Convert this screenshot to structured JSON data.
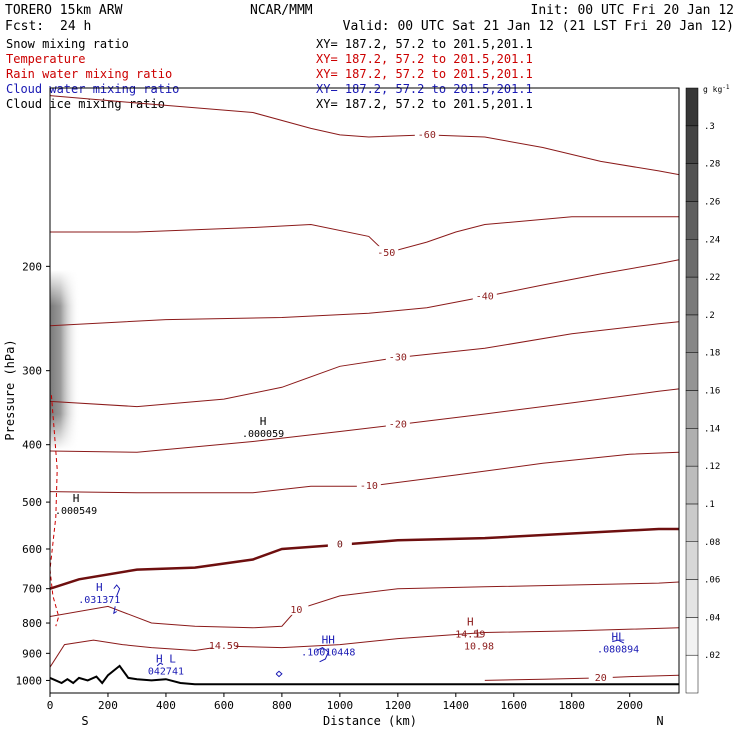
{
  "header": {
    "left_title": "TORERO  15km ARW",
    "center_title": "NCAR/MMM",
    "init": "Init: 00 UTC Fri 20 Jan 12",
    "fcst_label": "Fcst:",
    "fcst_value": "24 h",
    "valid": "Valid: 00 UTC Sat 21 Jan 12 (21 LST Fri 20 Jan 12)"
  },
  "fields": [
    {
      "name": "Snow mixing ratio",
      "xy": "XY= 187.2, 57.2 to 201.5,201.1",
      "color": "#000000"
    },
    {
      "name": "Temperature",
      "xy": "XY= 187.2, 57.2 to 201.5,201.1",
      "color": "#cc0000"
    },
    {
      "name": "Rain water mixing ratio",
      "xy": "XY= 187.2, 57.2 to 201.5,201.1",
      "color": "#cc0000"
    },
    {
      "name": "Cloud water mixing ratio",
      "xy": "XY= 187.2, 57.2 to 201.5,201.1",
      "color": "#1a1ab4"
    },
    {
      "name": "Cloud ice mixing ratio",
      "xy": "XY= 187.2, 57.2 to 201.5,201.1",
      "color": "#000000"
    }
  ],
  "colors": {
    "temperature": "#8b1a1a",
    "temperature_zero": "#6e0f0f",
    "cloud_water": "#1a1ab4",
    "terrain": "#000000",
    "rain": "#cc0000"
  },
  "chart_data": {
    "type": "contour",
    "xlabel": "Distance (km)",
    "ylabel": "Pressure (hPa)",
    "xlim": [
      0,
      2170
    ],
    "ylim": [
      1050,
      100
    ],
    "y_scale": "log",
    "x_ticks": [
      0,
      200,
      400,
      600,
      800,
      1000,
      1200,
      1400,
      1600,
      1800,
      2000
    ],
    "y_ticks": [
      200,
      300,
      400,
      500,
      600,
      700,
      800,
      900,
      1000
    ],
    "x_end_labels": {
      "left": "S",
      "right": "N"
    },
    "colorbar": {
      "unit": "g kg",
      "unit_exp": "-1",
      "ticks": [
        ".02",
        ".04",
        ".06",
        ".08",
        ".1",
        ".12",
        ".14",
        ".16",
        ".18",
        ".2",
        ".22",
        ".24",
        ".26",
        ".28",
        ".3"
      ]
    },
    "temperature_contours": [
      {
        "label": "-60",
        "points": [
          [
            0,
            103
          ],
          [
            300,
            106
          ],
          [
            700,
            110
          ],
          [
            900,
            117
          ],
          [
            1000,
            120
          ],
          [
            1100,
            121
          ],
          [
            1300,
            120
          ],
          [
            1500,
            121
          ],
          [
            1700,
            126
          ],
          [
            1900,
            133
          ],
          [
            2100,
            138
          ],
          [
            2170,
            140
          ]
        ]
      },
      {
        "label": "-50",
        "points": [
          [
            0,
            175
          ],
          [
            300,
            175
          ],
          [
            700,
            172
          ],
          [
            900,
            170
          ],
          [
            1100,
            178
          ],
          [
            1160,
            190
          ],
          [
            1300,
            182
          ],
          [
            1400,
            175
          ],
          [
            1500,
            170
          ],
          [
            1800,
            165
          ],
          [
            2170,
            165
          ]
        ]
      },
      {
        "label": "-40",
        "points": [
          [
            0,
            252
          ],
          [
            400,
            246
          ],
          [
            800,
            244
          ],
          [
            1100,
            240
          ],
          [
            1300,
            235
          ],
          [
            1500,
            225
          ],
          [
            1700,
            215
          ],
          [
            1900,
            206
          ],
          [
            2100,
            198
          ],
          [
            2170,
            195
          ]
        ]
      },
      {
        "label": "-30",
        "points": [
          [
            0,
            338
          ],
          [
            300,
            345
          ],
          [
            600,
            335
          ],
          [
            800,
            320
          ],
          [
            1000,
            295
          ],
          [
            1200,
            285
          ],
          [
            1500,
            275
          ],
          [
            1800,
            260
          ],
          [
            2100,
            250
          ],
          [
            2170,
            248
          ]
        ]
      },
      {
        "label": "-20",
        "points": [
          [
            0,
            410
          ],
          [
            300,
            412
          ],
          [
            700,
            395
          ],
          [
            1000,
            380
          ],
          [
            1200,
            370
          ],
          [
            1500,
            355
          ],
          [
            1800,
            340
          ],
          [
            2100,
            325
          ],
          [
            2170,
            322
          ]
        ]
      },
      {
        "label": "-10",
        "points": [
          [
            0,
            480
          ],
          [
            300,
            482
          ],
          [
            700,
            482
          ],
          [
            900,
            470
          ],
          [
            1100,
            470
          ],
          [
            1400,
            450
          ],
          [
            1700,
            430
          ],
          [
            2000,
            415
          ],
          [
            2170,
            412
          ]
        ]
      },
      {
        "label": "0",
        "bold": true,
        "points": [
          [
            0,
            700
          ],
          [
            100,
            675
          ],
          [
            300,
            650
          ],
          [
            500,
            645
          ],
          [
            700,
            625
          ],
          [
            800,
            600
          ],
          [
            1000,
            590
          ],
          [
            1200,
            580
          ],
          [
            1500,
            575
          ],
          [
            1800,
            565
          ],
          [
            2100,
            555
          ],
          [
            2170,
            555
          ]
        ]
      },
      {
        "label": "10",
        "points": [
          [
            0,
            780
          ],
          [
            200,
            750
          ],
          [
            350,
            800
          ],
          [
            500,
            810
          ],
          [
            700,
            815
          ],
          [
            800,
            810
          ],
          [
            850,
            760
          ],
          [
            1000,
            720
          ],
          [
            1200,
            700
          ],
          [
            1500,
            695
          ],
          [
            1800,
            690
          ],
          [
            2100,
            685
          ],
          [
            2170,
            682
          ]
        ]
      },
      {
        "label": "14.59",
        "points": [
          [
            0,
            950
          ],
          [
            50,
            870
          ],
          [
            150,
            855
          ],
          [
            250,
            870
          ],
          [
            350,
            880
          ],
          [
            500,
            890
          ],
          [
            600,
            875
          ],
          [
            800,
            880
          ],
          [
            1000,
            870
          ],
          [
            1200,
            850
          ],
          [
            1500,
            830
          ],
          [
            1800,
            825
          ],
          [
            2170,
            815
          ]
        ]
      },
      {
        "label": "20",
        "points": [
          [
            1500,
            1000
          ],
          [
            1700,
            995
          ],
          [
            1900,
            990
          ],
          [
            2000,
            985
          ],
          [
            2170,
            980
          ]
        ]
      }
    ],
    "zero_isotherm_label": "0",
    "terrain_profile": [
      [
        0,
        990
      ],
      [
        20,
        1000
      ],
      [
        40,
        1010
      ],
      [
        60,
        995
      ],
      [
        80,
        1010
      ],
      [
        100,
        990
      ],
      [
        130,
        1000
      ],
      [
        160,
        985
      ],
      [
        180,
        1010
      ],
      [
        200,
        980
      ],
      [
        240,
        945
      ],
      [
        270,
        990
      ],
      [
        300,
        995
      ],
      [
        350,
        1000
      ],
      [
        400,
        995
      ],
      [
        450,
        1010
      ],
      [
        500,
        1015
      ],
      [
        800,
        1015
      ],
      [
        1200,
        1015
      ],
      [
        1600,
        1015
      ],
      [
        2000,
        1015
      ],
      [
        2170,
        1015
      ]
    ],
    "rain_dashed_curve": [
      [
        5,
        330
      ],
      [
        15,
        380
      ],
      [
        25,
        440
      ],
      [
        20,
        530
      ],
      [
        0,
        650
      ],
      [
        10,
        720
      ],
      [
        30,
        780
      ],
      [
        20,
        810
      ]
    ],
    "cloud_water_contours": [
      [
        [
          220,
          700
        ],
        [
          230,
          690
        ],
        [
          240,
          700
        ],
        [
          230,
          720
        ]
      ],
      [
        [
          225,
          750
        ],
        [
          220,
          770
        ],
        [
          230,
          765
        ]
      ],
      [
        [
          370,
          945
        ],
        [
          380,
          935
        ],
        [
          390,
          940
        ]
      ],
      [
        [
          780,
          975
        ],
        [
          790,
          965
        ],
        [
          800,
          975
        ],
        [
          790,
          985
        ],
        [
          780,
          975
        ]
      ],
      [
        [
          920,
          890
        ],
        [
          940,
          880
        ],
        [
          960,
          895
        ],
        [
          950,
          920
        ],
        [
          930,
          930
        ]
      ],
      [
        [
          1940,
          860
        ],
        [
          1960,
          855
        ],
        [
          1980,
          865
        ]
      ]
    ],
    "annotations": [
      {
        "symbol": "H",
        "value": ".000059",
        "x": 735,
        "p": 385,
        "color": "#000000"
      },
      {
        "symbol": "H",
        "value": ".000549",
        "x": 90,
        "p": 520,
        "color": "#000000"
      },
      {
        "symbol": "H",
        "value": ".031371",
        "x": 170,
        "p": 735,
        "color": "#1a1ab4"
      },
      {
        "symbol": "H",
        "value": "14.59",
        "x": 1450,
        "p": 840,
        "color": "#8b1a1a"
      },
      {
        "symbol": "L",
        "value": "10.98",
        "x": 1480,
        "p": 880,
        "color": "#8b1a1a"
      },
      {
        "symbol": "HH",
        "value": ".10010448",
        "x": 960,
        "p": 900,
        "color": "#1a1ab4"
      },
      {
        "symbol": "HL",
        "value": ".080894",
        "x": 1960,
        "p": 890,
        "color": "#1a1ab4"
      },
      {
        "symbol": "H L",
        "value": "042741",
        "x": 400,
        "p": 970,
        "color": "#1a1ab4"
      }
    ],
    "grid": false,
    "legend": "top-left"
  }
}
